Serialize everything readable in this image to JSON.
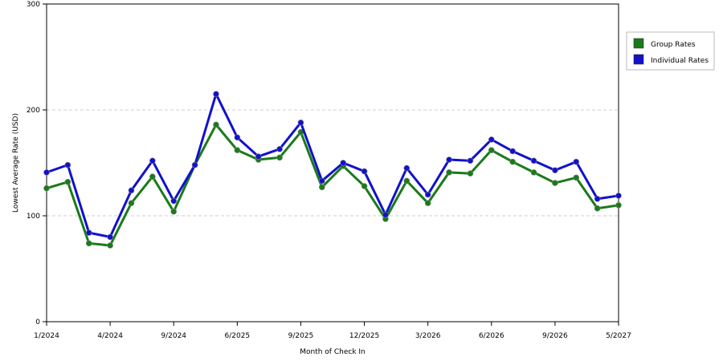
{
  "chart_data": {
    "type": "line",
    "title": "",
    "xlabel": "Month of Check In",
    "ylabel": "Lowest Average Rate (USD)",
    "ylim": [
      0,
      300
    ],
    "yticks": [
      "0",
      "100",
      "200",
      "300"
    ],
    "xtick_labels": [
      "1/2024",
      "4/2024",
      "9/2024",
      "6/2025",
      "9/2025",
      "12/2025",
      "3/2026",
      "6/2026",
      "9/2026",
      "5/2027"
    ],
    "grid": true,
    "legend_position": "right",
    "series": [
      {
        "name": "Group Rates",
        "color": "#1a7a1a",
        "values": [
          126,
          132,
          74,
          72,
          112,
          137,
          104,
          148,
          186,
          162,
          153,
          155,
          179,
          127,
          147,
          128,
          97,
          133,
          112,
          141,
          140,
          162,
          151,
          141,
          131,
          136,
          107,
          110
        ]
      },
      {
        "name": "Individual Rates",
        "color": "#1111cc",
        "values": [
          141,
          148,
          84,
          80,
          124,
          152,
          114,
          148,
          215,
          174,
          156,
          163,
          188,
          133,
          150,
          142,
          101,
          145,
          120,
          153,
          152,
          172,
          161,
          152,
          143,
          151,
          116,
          119
        ]
      }
    ]
  }
}
